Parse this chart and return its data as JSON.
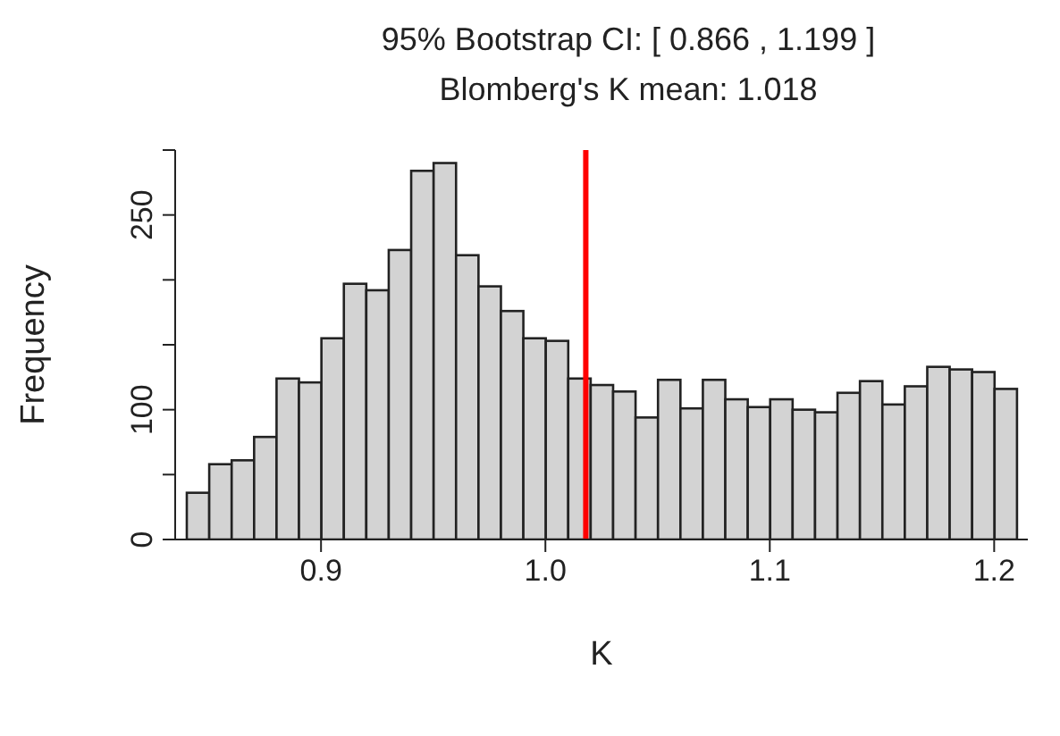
{
  "chart_data": {
    "type": "histogram",
    "title": "95% Bootstrap CI: [ 0.866 ,  1.199 ]",
    "subtitle": "Blomberg's K mean: 1.018",
    "xlabel": "K",
    "ylabel": "Frequency",
    "bins": [
      0.84,
      0.85,
      0.86,
      0.87,
      0.88,
      0.89,
      0.9,
      0.91,
      0.92,
      0.93,
      0.94,
      0.95,
      0.96,
      0.97,
      0.98,
      0.99,
      1.0,
      1.01,
      1.02,
      1.03,
      1.04,
      1.05,
      1.06,
      1.07,
      1.08,
      1.09,
      1.1,
      1.11,
      1.12,
      1.13,
      1.14,
      1.15,
      1.16,
      1.17,
      1.18,
      1.19,
      1.2,
      1.21
    ],
    "values": [
      36,
      58,
      61,
      79,
      124,
      121,
      155,
      197,
      192,
      223,
      284,
      290,
      219,
      195,
      176,
      155,
      153,
      124,
      119,
      114,
      94,
      123,
      101,
      123,
      108,
      102,
      108,
      100,
      98,
      113,
      122,
      104,
      118,
      133,
      131,
      129,
      116
    ],
    "color": "#d3d3d3",
    "xlim": [
      0.835,
      1.215
    ],
    "xticks": [
      0.9,
      {
        "value": 1,
        "label": "1.0"
      },
      1.1,
      1.2
    ],
    "ylim": [
      0,
      300
    ],
    "yticks": [
      0,
      {
        "value": 50,
        "label": null
      },
      100,
      {
        "value": 150,
        "label": null
      },
      {
        "value": 200,
        "label": null
      },
      250,
      {
        "value": 300,
        "label": null
      }
    ],
    "ref_lines": [
      {
        "axis": "x",
        "value": 1.018,
        "color": "#ff0000"
      }
    ],
    "grid": false,
    "legend": false
  }
}
